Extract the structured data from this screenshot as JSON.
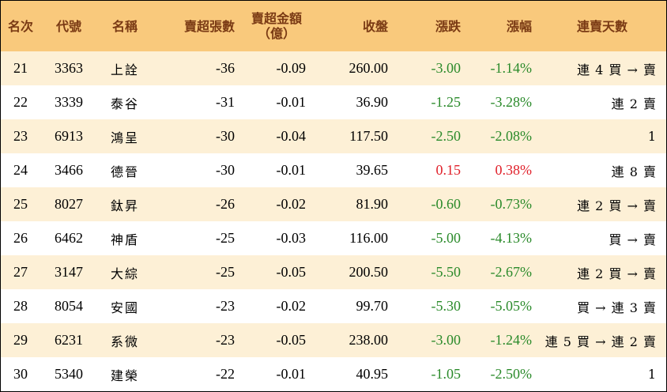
{
  "colors": {
    "header_bg": "#f9c97c",
    "header_text": "#7a3a14",
    "odd_row_bg": "#fdf0d6",
    "even_row_bg": "#ffffff",
    "down_color": "#2a8a2a",
    "up_color": "#e0202a"
  },
  "headers": {
    "rank": "名次",
    "code": "代號",
    "name": "名稱",
    "net_sell_lots": "賣超張數",
    "net_sell_amount_line1": "賣超金額",
    "net_sell_amount_line2": "（億）",
    "close": "收盤",
    "change": "漲跌",
    "change_pct": "漲幅",
    "streak": "連賣天數"
  },
  "rows": [
    {
      "rank": "21",
      "code": "3363",
      "name": "上詮",
      "lots": "-36",
      "amount": "-0.09",
      "close": "260.00",
      "change": "-3.00",
      "pct": "-1.14%",
      "direction": "down",
      "streak": "連 4 買 → 賣"
    },
    {
      "rank": "22",
      "code": "3339",
      "name": "泰谷",
      "lots": "-31",
      "amount": "-0.01",
      "close": "36.90",
      "change": "-1.25",
      "pct": "-3.28%",
      "direction": "down",
      "streak": "連 2 賣"
    },
    {
      "rank": "23",
      "code": "6913",
      "name": "鴻呈",
      "lots": "-30",
      "amount": "-0.04",
      "close": "117.50",
      "change": "-2.50",
      "pct": "-2.08%",
      "direction": "down",
      "streak": "1"
    },
    {
      "rank": "24",
      "code": "3466",
      "name": "德晉",
      "lots": "-30",
      "amount": "-0.01",
      "close": "39.65",
      "change": "0.15",
      "pct": "0.38%",
      "direction": "up",
      "streak": "連 8 賣"
    },
    {
      "rank": "25",
      "code": "8027",
      "name": "鈦昇",
      "lots": "-26",
      "amount": "-0.02",
      "close": "81.90",
      "change": "-0.60",
      "pct": "-0.73%",
      "direction": "down",
      "streak": "連 2 買 → 賣"
    },
    {
      "rank": "26",
      "code": "6462",
      "name": "神盾",
      "lots": "-25",
      "amount": "-0.03",
      "close": "116.00",
      "change": "-5.00",
      "pct": "-4.13%",
      "direction": "down",
      "streak": "買 → 賣"
    },
    {
      "rank": "27",
      "code": "3147",
      "name": "大綜",
      "lots": "-25",
      "amount": "-0.05",
      "close": "200.50",
      "change": "-5.50",
      "pct": "-2.67%",
      "direction": "down",
      "streak": "連 2 買 → 賣"
    },
    {
      "rank": "28",
      "code": "8054",
      "name": "安國",
      "lots": "-23",
      "amount": "-0.02",
      "close": "99.70",
      "change": "-5.30",
      "pct": "-5.05%",
      "direction": "down",
      "streak": "買 → 連 3 賣"
    },
    {
      "rank": "29",
      "code": "6231",
      "name": "系微",
      "lots": "-23",
      "amount": "-0.05",
      "close": "238.00",
      "change": "-3.00",
      "pct": "-1.24%",
      "direction": "down",
      "streak": "連 5 買 → 連 2 賣"
    },
    {
      "rank": "30",
      "code": "5340",
      "name": "建榮",
      "lots": "-22",
      "amount": "-0.01",
      "close": "40.95",
      "change": "-1.05",
      "pct": "-2.50%",
      "direction": "down",
      "streak": "1"
    }
  ]
}
